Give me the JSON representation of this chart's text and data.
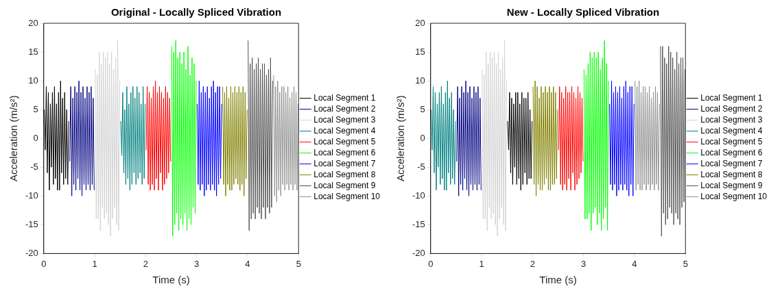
{
  "chart_data": [
    {
      "type": "line",
      "title": "Original - Locally Spliced Vibration",
      "xlabel": "Time (s)",
      "ylabel": "Acceleration (m/s²)",
      "xlim": [
        0,
        5
      ],
      "xticks": [
        0,
        1,
        2,
        3,
        4,
        5
      ],
      "ylim": [
        -20,
        20
      ],
      "yticks": [
        -20,
        -15,
        -10,
        -5,
        0,
        5,
        10,
        15,
        20
      ],
      "grid": false,
      "legend": "right",
      "marker": "none",
      "line_style": "solid",
      "series": [
        {
          "name": "Local Segment 1",
          "color": "#000000",
          "x": [
            0.01,
            0.03,
            0.05,
            0.07,
            0.09,
            0.11,
            0.13,
            0.15,
            0.17,
            0.19,
            0.21,
            0.23,
            0.25,
            0.27,
            0.29,
            0.31,
            0.33,
            0.35,
            0.37,
            0.39,
            0.41,
            0.43,
            0.45,
            0.47,
            0.49
          ],
          "values": [
            5,
            -2,
            9,
            -6,
            8,
            -9,
            6,
            -5,
            8,
            -8,
            9,
            -7,
            6,
            -9,
            8,
            -9,
            10,
            -6,
            7,
            -8,
            8,
            -7,
            5,
            -8,
            3
          ]
        },
        {
          "name": "Local Segment 2",
          "color": "#000080",
          "x": [
            0.51,
            0.53,
            0.55,
            0.57,
            0.59,
            0.61,
            0.63,
            0.65,
            0.67,
            0.69,
            0.71,
            0.73,
            0.75,
            0.77,
            0.79,
            0.81,
            0.83,
            0.85,
            0.87,
            0.89,
            0.91,
            0.93,
            0.95,
            0.97,
            0.99
          ],
          "values": [
            -4,
            9,
            -10,
            7,
            -8,
            9,
            -9,
            8,
            -7,
            10,
            -9,
            8,
            -10,
            9,
            -8,
            7,
            -9,
            9,
            -8,
            8,
            -9,
            9,
            -8,
            7,
            -9
          ]
        },
        {
          "name": "Local Segment 3",
          "color": "#d3d3d3",
          "x": [
            1.01,
            1.03,
            1.05,
            1.07,
            1.09,
            1.11,
            1.13,
            1.15,
            1.17,
            1.19,
            1.21,
            1.23,
            1.25,
            1.27,
            1.29,
            1.31,
            1.33,
            1.35,
            1.37,
            1.39,
            1.41,
            1.43,
            1.45,
            1.47,
            1.49
          ],
          "values": [
            12,
            -14,
            11,
            -14,
            15,
            -16,
            13,
            -12,
            15,
            -14,
            14,
            -13,
            15,
            -15,
            13,
            -17,
            15,
            -14,
            12,
            -12,
            14,
            -15,
            17,
            -16,
            10
          ]
        },
        {
          "name": "Local Segment 4",
          "color": "#008080",
          "x": [
            1.51,
            1.53,
            1.55,
            1.57,
            1.59,
            1.61,
            1.63,
            1.65,
            1.67,
            1.69,
            1.71,
            1.73,
            1.75,
            1.77,
            1.79,
            1.81,
            1.83,
            1.85,
            1.87,
            1.89,
            1.91,
            1.93,
            1.95,
            1.97,
            1.99
          ],
          "values": [
            3,
            -3,
            8,
            -6,
            5,
            -8,
            9,
            -7,
            6,
            -9,
            8,
            -8,
            9,
            -6,
            7,
            -8,
            9,
            -7,
            8,
            -6,
            6,
            -8,
            9,
            -7,
            6
          ]
        },
        {
          "name": "Local Segment 5",
          "color": "#ff0000",
          "x": [
            2.01,
            2.03,
            2.05,
            2.07,
            2.09,
            2.11,
            2.13,
            2.15,
            2.17,
            2.19,
            2.21,
            2.23,
            2.25,
            2.27,
            2.29,
            2.31,
            2.33,
            2.35,
            2.37,
            2.39,
            2.41,
            2.43,
            2.45,
            2.47,
            2.49
          ],
          "values": [
            -2,
            9,
            -8,
            8,
            -9,
            7,
            -8,
            9,
            -9,
            10,
            -7,
            8,
            -9,
            9,
            -6,
            8,
            -9,
            7,
            -8,
            9,
            -7,
            8,
            -6,
            7,
            -4
          ]
        },
        {
          "name": "Local Segment 6",
          "color": "#00ff00",
          "x": [
            2.51,
            2.53,
            2.55,
            2.57,
            2.59,
            2.61,
            2.63,
            2.65,
            2.67,
            2.69,
            2.71,
            2.73,
            2.75,
            2.77,
            2.79,
            2.81,
            2.83,
            2.85,
            2.87,
            2.89,
            2.91,
            2.93,
            2.95,
            2.97,
            2.99
          ],
          "values": [
            16,
            -17,
            15,
            -15,
            17,
            -13,
            14,
            -16,
            15,
            -14,
            13,
            -15,
            15,
            -13,
            12,
            -16,
            16,
            -14,
            11,
            -15,
            14,
            -12,
            13,
            -13,
            10
          ]
        },
        {
          "name": "Local Segment 7",
          "color": "#0000ff",
          "x": [
            3.01,
            3.03,
            3.05,
            3.07,
            3.09,
            3.11,
            3.13,
            3.15,
            3.17,
            3.19,
            3.21,
            3.23,
            3.25,
            3.27,
            3.29,
            3.31,
            3.33,
            3.35,
            3.37,
            3.39,
            3.41,
            3.43,
            3.45,
            3.47,
            3.49
          ],
          "values": [
            6,
            -8,
            10,
            -9,
            8,
            -8,
            9,
            -10,
            8,
            -9,
            9,
            -8,
            7,
            -9,
            9,
            -8,
            10,
            -9,
            8,
            -10,
            9,
            -8,
            9,
            -7,
            6
          ]
        },
        {
          "name": "Local Segment 8",
          "color": "#808000",
          "x": [
            3.51,
            3.53,
            3.55,
            3.57,
            3.59,
            3.61,
            3.63,
            3.65,
            3.67,
            3.69,
            3.71,
            3.73,
            3.75,
            3.77,
            3.79,
            3.81,
            3.83,
            3.85,
            3.87,
            3.89,
            3.91,
            3.93,
            3.95,
            3.97,
            3.99
          ],
          "values": [
            9,
            -8,
            8,
            -10,
            9,
            -8,
            7,
            -9,
            9,
            -9,
            8,
            -8,
            9,
            -7,
            8,
            -8,
            9,
            -9,
            8,
            -8,
            9,
            -10,
            8,
            -7,
            5
          ]
        },
        {
          "name": "Local Segment 9",
          "color": "#505050",
          "x": [
            4.01,
            4.03,
            4.05,
            4.07,
            4.09,
            4.11,
            4.13,
            4.15,
            4.17,
            4.19,
            4.21,
            4.23,
            4.25,
            4.27,
            4.29,
            4.31,
            4.33,
            4.35,
            4.37,
            4.39,
            4.41,
            4.43,
            4.45,
            4.47,
            4.49
          ],
          "values": [
            17,
            -16,
            13,
            -14,
            14,
            -13,
            12,
            -14,
            13,
            -12,
            14,
            -13,
            12,
            -14,
            13,
            -12,
            13,
            -14,
            11,
            -12,
            12,
            -13,
            14,
            -12,
            10
          ]
        },
        {
          "name": "Local Segment 10",
          "color": "#909090",
          "x": [
            4.51,
            4.53,
            4.55,
            4.57,
            4.59,
            4.61,
            4.63,
            4.65,
            4.67,
            4.69,
            4.71,
            4.73,
            4.75,
            4.77,
            4.79,
            4.81,
            4.83,
            4.85,
            4.87,
            4.89,
            4.91,
            4.93,
            4.95,
            4.97,
            4.99
          ],
          "values": [
            11,
            -10,
            9,
            -11,
            10,
            -9,
            8,
            -10,
            9,
            -8,
            9,
            -9,
            8,
            -8,
            9,
            -9,
            7,
            -8,
            8,
            -9,
            9,
            -8,
            8,
            -9,
            6
          ]
        }
      ]
    },
    {
      "type": "line",
      "title": "New - Locally Spliced Vibration",
      "xlabel": "Time (s)",
      "ylabel": "Acceleration (m/s²)",
      "xlim": [
        0,
        5
      ],
      "xticks": [
        0,
        1,
        2,
        3,
        4,
        5
      ],
      "ylim": [
        -20,
        20
      ],
      "yticks": [
        -20,
        -15,
        -10,
        -5,
        0,
        5,
        10,
        15,
        20
      ],
      "grid": false,
      "legend": "right",
      "marker": "none",
      "line_style": "solid",
      "series": [
        {
          "name": "Local Segment 1",
          "color": "#000000",
          "x": [
            1.51,
            1.53,
            1.55,
            1.57,
            1.59,
            1.61,
            1.63,
            1.65,
            1.67,
            1.69,
            1.71,
            1.73,
            1.75,
            1.77,
            1.79,
            1.81,
            1.83,
            1.85,
            1.87,
            1.89,
            1.91,
            1.93,
            1.95,
            1.97,
            1.99
          ],
          "values": [
            3,
            -2,
            8,
            -6,
            7,
            -8,
            6,
            -5,
            8,
            -8,
            8,
            -7,
            6,
            -9,
            8,
            -8,
            7,
            -6,
            7,
            -8,
            8,
            -7,
            5,
            -7,
            3
          ]
        },
        {
          "name": "Local Segment 2",
          "color": "#000080",
          "x": [
            0.51,
            0.53,
            0.55,
            0.57,
            0.59,
            0.61,
            0.63,
            0.65,
            0.67,
            0.69,
            0.71,
            0.73,
            0.75,
            0.77,
            0.79,
            0.81,
            0.83,
            0.85,
            0.87,
            0.89,
            0.91,
            0.93,
            0.95,
            0.97,
            0.99
          ],
          "values": [
            -4,
            9,
            -10,
            7,
            -8,
            9,
            -9,
            8,
            -7,
            10,
            -9,
            8,
            -10,
            9,
            -8,
            7,
            -9,
            9,
            -8,
            8,
            -9,
            9,
            -8,
            7,
            -9
          ]
        },
        {
          "name": "Local Segment 3",
          "color": "#d3d3d3",
          "x": [
            1.01,
            1.03,
            1.05,
            1.07,
            1.09,
            1.11,
            1.13,
            1.15,
            1.17,
            1.19,
            1.21,
            1.23,
            1.25,
            1.27,
            1.29,
            1.31,
            1.33,
            1.35,
            1.37,
            1.39,
            1.41,
            1.43,
            1.45,
            1.47,
            1.49
          ],
          "values": [
            12,
            -14,
            11,
            -14,
            15,
            -16,
            13,
            -12,
            15,
            -14,
            14,
            -13,
            15,
            -15,
            13,
            -17,
            15,
            -14,
            12,
            -12,
            14,
            -15,
            17,
            -16,
            10
          ]
        },
        {
          "name": "Local Segment 4",
          "color": "#008080",
          "x": [
            0.01,
            0.03,
            0.05,
            0.07,
            0.09,
            0.11,
            0.13,
            0.15,
            0.17,
            0.19,
            0.21,
            0.23,
            0.25,
            0.27,
            0.29,
            0.31,
            0.33,
            0.35,
            0.37,
            0.39,
            0.41,
            0.43,
            0.45,
            0.47,
            0.49
          ],
          "values": [
            5,
            -2,
            9,
            -6,
            8,
            -9,
            6,
            -5,
            8,
            -8,
            9,
            -7,
            6,
            -9,
            8,
            -9,
            10,
            -6,
            7,
            -8,
            8,
            -7,
            5,
            -8,
            3
          ]
        },
        {
          "name": "Local Segment 5",
          "color": "#ff0000",
          "x": [
            2.51,
            2.53,
            2.55,
            2.57,
            2.59,
            2.61,
            2.63,
            2.65,
            2.67,
            2.69,
            2.71,
            2.73,
            2.75,
            2.77,
            2.79,
            2.81,
            2.83,
            2.85,
            2.87,
            2.89,
            2.91,
            2.93,
            2.95,
            2.97,
            2.99
          ],
          "values": [
            -2,
            9,
            -8,
            8,
            -9,
            7,
            -8,
            9,
            -9,
            8,
            -7,
            8,
            -9,
            9,
            -6,
            8,
            -9,
            7,
            -8,
            9,
            -7,
            8,
            -6,
            7,
            -4
          ]
        },
        {
          "name": "Local Segment 6",
          "color": "#00ff00",
          "x": [
            3.01,
            3.03,
            3.05,
            3.07,
            3.09,
            3.11,
            3.13,
            3.15,
            3.17,
            3.19,
            3.21,
            3.23,
            3.25,
            3.27,
            3.29,
            3.31,
            3.33,
            3.35,
            3.37,
            3.39,
            3.41,
            3.43,
            3.45,
            3.47,
            3.49
          ],
          "values": [
            12,
            -14,
            11,
            -14,
            13,
            -13,
            15,
            -16,
            14,
            -13,
            15,
            -12,
            14,
            -15,
            15,
            -13,
            12,
            -16,
            14,
            -14,
            17,
            -12,
            13,
            -16,
            10
          ]
        },
        {
          "name": "Local Segment 7",
          "color": "#0000ff",
          "x": [
            3.51,
            3.53,
            3.55,
            3.57,
            3.59,
            3.61,
            3.63,
            3.65,
            3.67,
            3.69,
            3.71,
            3.73,
            3.75,
            3.77,
            3.79,
            3.81,
            3.83,
            3.85,
            3.87,
            3.89,
            3.91,
            3.93,
            3.95,
            3.97,
            3.99
          ],
          "values": [
            6,
            -8,
            10,
            -9,
            8,
            -8,
            9,
            -10,
            8,
            -9,
            9,
            -8,
            7,
            -9,
            9,
            -8,
            10,
            -9,
            8,
            -10,
            9,
            -8,
            9,
            -10,
            6
          ]
        },
        {
          "name": "Local Segment 8",
          "color": "#808000",
          "x": [
            2.01,
            2.03,
            2.05,
            2.07,
            2.09,
            2.11,
            2.13,
            2.15,
            2.17,
            2.19,
            2.21,
            2.23,
            2.25,
            2.27,
            2.29,
            2.31,
            2.33,
            2.35,
            2.37,
            2.39,
            2.41,
            2.43,
            2.45,
            2.47,
            2.49
          ],
          "values": [
            9,
            -8,
            10,
            -10,
            9,
            -8,
            7,
            -9,
            9,
            -9,
            8,
            -8,
            9,
            -7,
            8,
            -9,
            9,
            -9,
            8,
            -8,
            9,
            -8,
            8,
            -7,
            5
          ]
        },
        {
          "name": "Local Segment 9",
          "color": "#505050",
          "x": [
            4.51,
            4.53,
            4.55,
            4.57,
            4.59,
            4.61,
            4.63,
            4.65,
            4.67,
            4.69,
            4.71,
            4.73,
            4.75,
            4.77,
            4.79,
            4.81,
            4.83,
            4.85,
            4.87,
            4.89,
            4.91,
            4.93,
            4.95,
            4.97,
            4.99
          ],
          "values": [
            16,
            -17,
            16,
            -13,
            14,
            -15,
            13,
            -14,
            16,
            -12,
            15,
            -13,
            14,
            -15,
            12,
            -13,
            15,
            -14,
            13,
            -15,
            14,
            -12,
            14,
            -11,
            12
          ]
        },
        {
          "name": "Local Segment 10",
          "color": "#909090",
          "x": [
            4.01,
            4.03,
            4.05,
            4.07,
            4.09,
            4.11,
            4.13,
            4.15,
            4.17,
            4.19,
            4.21,
            4.23,
            4.25,
            4.27,
            4.29,
            4.31,
            4.33,
            4.35,
            4.37,
            4.39,
            4.41,
            4.43,
            4.45,
            4.47,
            4.49
          ],
          "values": [
            10,
            -9,
            9,
            -8,
            10,
            -9,
            8,
            -9,
            9,
            -8,
            9,
            -9,
            8,
            -8,
            9,
            -9,
            7,
            -8,
            8,
            -9,
            9,
            -8,
            8,
            -9,
            6
          ]
        }
      ]
    }
  ]
}
